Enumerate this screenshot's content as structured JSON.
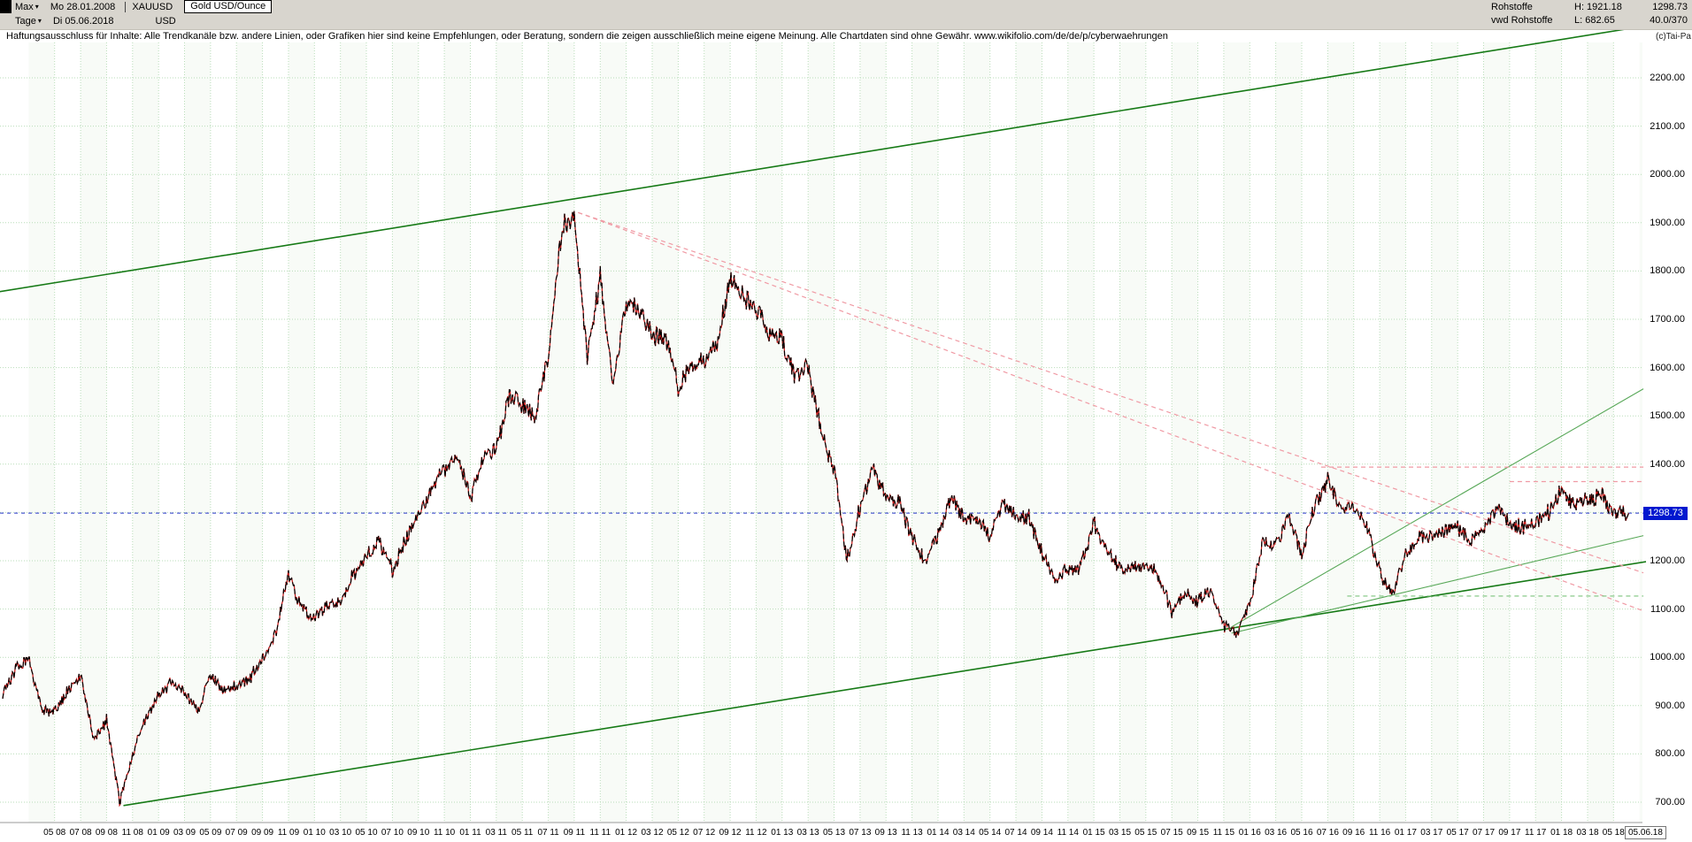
{
  "toolbar": {
    "range_label": "Max",
    "date_from": "Mo 28.01.2008",
    "symbol": "XAUUSD",
    "instrument_box": "Gold USD/Ounce",
    "period_label": "Tage",
    "date_to": "Di 05.06.2018",
    "currency": "USD"
  },
  "info_panel": {
    "rows": [
      {
        "name": "Rohstoffe",
        "hl": "H: 1921.18",
        "val": "1298.73"
      },
      {
        "name": "vwd Rohstoffe",
        "hl": "L: 682.65",
        "val": "40.0/370"
      }
    ]
  },
  "watermark": "(c)Tai-Pa",
  "disclaimer": "Haftungsausschluss für Inhalte: Alle Trendkanäle bzw. andere Linien, oder Grafiken hier sind keine Empfehlungen, oder Beratung, sondern die zeigen ausschließlich meine eigene Meinung. Alle Chartdaten sind ohne Gewähr.  www.wikifolio.com/de/de/p/cyberwaehrungen",
  "axis": {
    "price_marker": "1298.73",
    "x_last_date": "05.06.18",
    "y_labels": [
      "2200.00",
      "2100.00",
      "2000.00",
      "1900.00",
      "1800.00",
      "1700.00",
      "1600.00",
      "1500.00",
      "1400.00",
      "1300.00",
      "1200.00",
      "1100.00",
      "1000.00",
      "900.00",
      "800.00",
      "700.00"
    ],
    "x_labels": [
      "05 08",
      "07 08",
      "09 08",
      "11 08",
      "01 09",
      "03 09",
      "05 09",
      "07 09",
      "09 09",
      "11 09",
      "01 10",
      "03 10",
      "05 10",
      "07 10",
      "09 10",
      "11 10",
      "01 11",
      "03 11",
      "05 11",
      "07 11",
      "09 11",
      "11 11",
      "01 12",
      "03 12",
      "05 12",
      "07 12",
      "09 12",
      "11 12",
      "01 13",
      "03 13",
      "05 13",
      "07 13",
      "09 13",
      "11 13",
      "01 14",
      "03 14",
      "05 14",
      "07 14",
      "09 14",
      "11 14",
      "01 15",
      "03 15",
      "05 15",
      "07 15",
      "09 15",
      "11 15",
      "01 16",
      "03 16",
      "05 16",
      "07 16",
      "09 16",
      "11 16",
      "01 17",
      "03 17",
      "05 17",
      "07 17",
      "09 17",
      "11 17",
      "01 18",
      "03 18",
      "05 18"
    ]
  },
  "chart_data": {
    "type": "line",
    "title": "Gold USD/Ounce (XAUUSD), daily, 28.01.2008 - 05.06.2018",
    "x_range": [
      "2008-01-28",
      "2018-06-05"
    ],
    "x_start_month": "2008-01",
    "high": 1921.18,
    "low": 682.65,
    "last_value": 1298.73,
    "ylim": [
      650,
      2270
    ],
    "grid": {
      "y_min": 700,
      "y_max": 2200,
      "y_step": 100
    },
    "monthly_values": [
      920,
      975,
      1000,
      890,
      885,
      930,
      960,
      830,
      870,
      700,
      800,
      870,
      920,
      950,
      930,
      890,
      960,
      935,
      940,
      955,
      1000,
      1045,
      1170,
      1100,
      1080,
      1110,
      1115,
      1170,
      1210,
      1240,
      1180,
      1240,
      1300,
      1350,
      1390,
      1420,
      1330,
      1410,
      1430,
      1540,
      1520,
      1500,
      1620,
      1880,
      1920,
      1620,
      1790,
      1560,
      1740,
      1720,
      1670,
      1660,
      1560,
      1600,
      1610,
      1650,
      1780,
      1750,
      1720,
      1670,
      1660,
      1580,
      1600,
      1470,
      1390,
      1200,
      1310,
      1390,
      1330,
      1320,
      1250,
      1200,
      1250,
      1330,
      1290,
      1290,
      1250,
      1320,
      1290,
      1290,
      1215,
      1165,
      1180,
      1185,
      1280,
      1215,
      1185,
      1185,
      1190,
      1170,
      1095,
      1135,
      1115,
      1140,
      1065,
      1050,
      1115,
      1235,
      1230,
      1290,
      1215,
      1320,
      1365,
      1310,
      1315,
      1275,
      1175,
      1130,
      1210,
      1250,
      1250,
      1265,
      1270,
      1240,
      1265,
      1310,
      1280,
      1270,
      1280,
      1300,
      1345,
      1320,
      1325,
      1340,
      1300,
      1298.73
    ],
    "trendlines": [
      {
        "name": "lower-channel-support",
        "color": "#167a16",
        "width": 1.6,
        "dash": null,
        "points": [
          [
            9.3,
            693
          ],
          [
            126.5,
            1198
          ]
        ]
      },
      {
        "name": "upper-channel-resistance",
        "color": "#167a16",
        "width": 1.6,
        "dash": null,
        "points": [
          [
            -0.3,
            1757
          ],
          [
            129.8,
            2322
          ]
        ]
      },
      {
        "name": "uptrend-2016-steep",
        "color": "#58a858",
        "width": 1.1,
        "dash": null,
        "points": [
          [
            94.6,
            1063
          ],
          [
            126.3,
            1556
          ]
        ]
      },
      {
        "name": "uptrend-2016-shallow",
        "color": "#58a858",
        "width": 1.1,
        "dash": null,
        "points": [
          [
            94.6,
            1050
          ],
          [
            126.3,
            1252
          ]
        ]
      },
      {
        "name": "downtrend-from-high-steep",
        "color": "#f09aa4",
        "width": 1.2,
        "dash": "5 4",
        "points": [
          [
            44.3,
            1921
          ],
          [
            126.3,
            1096
          ]
        ]
      },
      {
        "name": "downtrend-from-high-shallow",
        "color": "#f09aa4",
        "width": 1.2,
        "dash": "5 4",
        "points": [
          [
            44.3,
            1921
          ],
          [
            126.3,
            1175
          ]
        ]
      },
      {
        "name": "resistance-horizontal-1394",
        "color": "#f09aa4",
        "width": 1.2,
        "dash": "5 4",
        "points": [
          [
            101.5,
            1394
          ],
          [
            126.3,
            1394
          ]
        ]
      },
      {
        "name": "resistance-horizontal-1364",
        "color": "#f09aa4",
        "width": 1.2,
        "dash": "5 4",
        "points": [
          [
            116,
            1364
          ],
          [
            126.3,
            1364
          ]
        ]
      },
      {
        "name": "support-horizontal-1127",
        "color": "#7cc47c",
        "width": 1.1,
        "dash": "5 4",
        "points": [
          [
            103.5,
            1127
          ],
          [
            126.3,
            1127
          ]
        ]
      },
      {
        "name": "current-price-line",
        "color": "#2030c8",
        "width": 1.0,
        "dash": "4 4",
        "points": [
          [
            -0.2,
            1298.73
          ],
          [
            126.4,
            1298.73
          ]
        ]
      }
    ],
    "colors": {
      "line": "#000000",
      "down": "#c01010",
      "grid": "#b9ddb9",
      "band": "#f3f8f1",
      "marker_bg": "#0018cf",
      "topbar_bg": "#d8d5ce"
    }
  }
}
